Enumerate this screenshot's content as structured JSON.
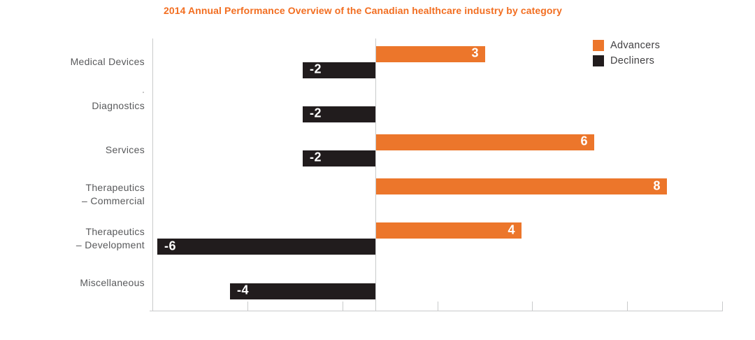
{
  "chart_data": {
    "type": "bar",
    "orientation": "horizontal",
    "title": "2014 Annual Performance Overview of the Canadian healthcare industry by category",
    "title_color": "#F26E21",
    "categories": [
      "Medical Devices",
      "Diagnostics",
      "Services",
      "Therapeutics – Commercial",
      "Therapeutics – Development",
      "Miscellaneous"
    ],
    "categories_lines": [
      [
        "Medical Devices"
      ],
      [
        "Diagnostics"
      ],
      [
        "Services"
      ],
      [
        "Therapeutics",
        "– Commercial"
      ],
      [
        "Therapeutics",
        "– Development"
      ],
      [
        "Miscellaneous"
      ]
    ],
    "series": [
      {
        "name": "Advancers",
        "color": "#EC762B",
        "values": [
          3,
          null,
          6,
          8,
          4,
          null
        ]
      },
      {
        "name": "Decliners",
        "color": "#211C1D",
        "values": [
          -2,
          -2,
          -2,
          null,
          -6,
          -4
        ]
      }
    ],
    "value_labels": [
      "3",
      "-2",
      "-2",
      "6",
      "-2",
      "8",
      "4",
      "-6",
      "-4"
    ],
    "value_label_style": "inside-bar-end, white bold",
    "xlim": [
      -6.13,
      9.54
    ],
    "x_tick_count": 7,
    "x_tick_labels": [],
    "grid": "zero-baseline-only",
    "legend_position": "top-right",
    "legend_text_color": "#414042",
    "text_color": "#58595B",
    "axis_color": "#C9CACB"
  }
}
